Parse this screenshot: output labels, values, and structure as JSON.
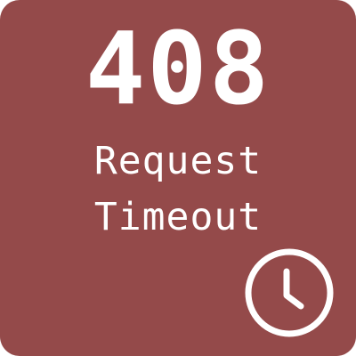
{
  "colors": {
    "tile_background": "#944a4a",
    "foreground": "#ffffff"
  },
  "status": {
    "code": "408",
    "message_line_1": "Request",
    "message_line_2": "Timeout"
  },
  "icon": {
    "name": "clock-icon"
  }
}
